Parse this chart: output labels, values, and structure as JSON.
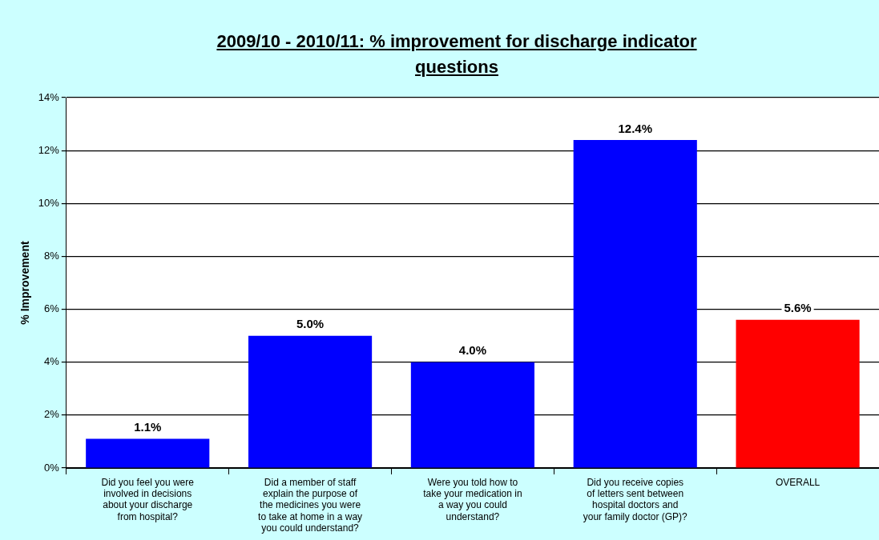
{
  "chart_data": {
    "type": "bar",
    "title": "2009/10 - 2010/11: % improvement for discharge indicator questions",
    "ylabel": "% Improvement",
    "categories": [
      "Did you feel you were involved in decisions about your discharge from hospital?",
      "Did a member of staff explain the purpose of the medicines you were to take at home in a way you could understand?",
      "Were you told how to take your medication in a way you could understand?",
      "Did you receive copies of letters sent between hospital doctors and your family doctor (GP)?",
      "OVERALL"
    ],
    "values": [
      1.1,
      5.0,
      4.0,
      12.4,
      5.6
    ],
    "colors": [
      "#0000ff",
      "#0000ff",
      "#0000ff",
      "#0000ff",
      "#ff0000"
    ],
    "value_labels": [
      "1.1%",
      "5.0%",
      "4.0%",
      "12.4%",
      "5.6%"
    ],
    "ylim": [
      0,
      14
    ],
    "yticks": [
      {
        "value": 0,
        "label": "0%"
      },
      {
        "value": 2,
        "label": "2%"
      },
      {
        "value": 4,
        "label": "4%"
      },
      {
        "value": 6,
        "label": "6%"
      },
      {
        "value": 8,
        "label": "8%"
      },
      {
        "value": 10,
        "label": "10%"
      },
      {
        "value": 12,
        "label": "12%"
      },
      {
        "value": 14,
        "label": "14%"
      }
    ],
    "grid": "y",
    "legend": false
  }
}
